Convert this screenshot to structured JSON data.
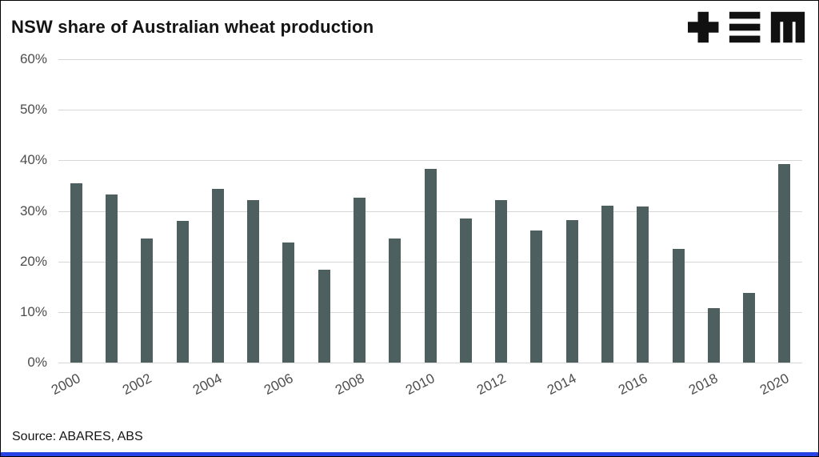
{
  "footer": {
    "source": "Source: ABARES, ABS"
  },
  "logo": {
    "name": "tem-logo",
    "color": "#111111"
  },
  "chart_data": {
    "type": "bar",
    "title": "NSW share of Australian wheat production",
    "categories": [
      2000,
      2001,
      2002,
      2003,
      2004,
      2005,
      2006,
      2007,
      2008,
      2009,
      2010,
      2011,
      2012,
      2013,
      2014,
      2015,
      2016,
      2017,
      2018,
      2019,
      2020
    ],
    "values": [
      35.5,
      33.2,
      24.6,
      28.1,
      34.3,
      32.1,
      23.8,
      18.3,
      32.6,
      24.6,
      38.3,
      28.5,
      32.2,
      26.2,
      28.2,
      31.0,
      30.8,
      22.5,
      10.7,
      13.8,
      39.3
    ],
    "xlabel": "",
    "ylabel": "",
    "ylim": [
      0,
      60
    ],
    "yticks": [
      0,
      10,
      20,
      30,
      40,
      50,
      60
    ],
    "ytick_suffix": "%",
    "xticks": [
      2000,
      2002,
      2004,
      2006,
      2008,
      2010,
      2012,
      2014,
      2016,
      2018,
      2020
    ],
    "grid": true,
    "legend": "none",
    "bar_color": "#4d5f5e",
    "gridline_color": "#d6d6d6",
    "tick_color": "#4d4d4d",
    "accent_color": "#2743e5"
  }
}
